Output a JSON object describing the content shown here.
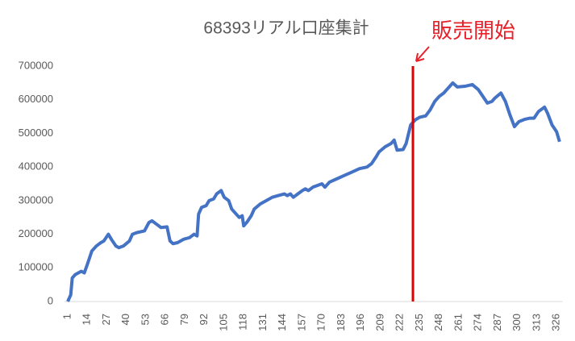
{
  "chart_data": {
    "type": "line",
    "title": "68393リアル口座集計",
    "x": [
      1,
      3,
      4,
      6,
      10,
      12,
      14,
      17,
      20,
      23,
      25,
      28,
      30,
      33,
      35,
      38,
      42,
      44,
      47,
      52,
      55,
      57,
      60,
      63,
      67,
      69,
      71,
      74,
      78,
      82,
      85,
      87,
      88,
      90,
      93,
      95,
      98,
      100,
      103,
      105,
      108,
      110,
      113,
      115,
      117,
      118,
      120,
      123,
      125,
      129,
      133,
      137,
      141,
      145,
      147,
      149,
      151,
      154,
      157,
      159,
      161,
      164,
      170,
      172,
      175,
      180,
      185,
      190,
      195,
      200,
      203,
      206,
      208,
      212,
      216,
      218,
      220,
      224,
      226,
      229,
      232,
      235,
      239,
      242,
      245,
      248,
      251,
      253,
      257,
      260,
      265,
      270,
      274,
      277,
      280,
      283,
      285,
      289,
      292,
      295,
      298,
      301,
      305,
      308,
      311,
      314,
      318,
      320,
      323,
      326,
      328
    ],
    "series": [
      {
        "name": "68393リアル口座集計",
        "color": "#4472c4",
        "values": [
          0,
          20000,
          70000,
          80000,
          90000,
          85000,
          110000,
          150000,
          165000,
          175000,
          180000,
          200000,
          185000,
          165000,
          160000,
          165000,
          180000,
          200000,
          205000,
          210000,
          235000,
          240000,
          230000,
          220000,
          222000,
          180000,
          172000,
          175000,
          185000,
          190000,
          200000,
          195000,
          260000,
          280000,
          285000,
          300000,
          305000,
          320000,
          330000,
          310000,
          300000,
          275000,
          260000,
          250000,
          255000,
          225000,
          235000,
          255000,
          275000,
          290000,
          300000,
          310000,
          315000,
          320000,
          315000,
          320000,
          310000,
          320000,
          330000,
          335000,
          330000,
          340000,
          350000,
          340000,
          355000,
          365000,
          375000,
          385000,
          395000,
          400000,
          410000,
          430000,
          445000,
          460000,
          470000,
          480000,
          450000,
          452000,
          470000,
          525000,
          540000,
          548000,
          552000,
          570000,
          595000,
          610000,
          620000,
          630000,
          650000,
          638000,
          640000,
          645000,
          630000,
          610000,
          590000,
          595000,
          605000,
          620000,
          595000,
          555000,
          520000,
          535000,
          542000,
          545000,
          545000,
          565000,
          578000,
          560000,
          525000,
          505000,
          475000
        ]
      }
    ],
    "xlim": [
      1,
      330
    ],
    "xticks": [
      1,
      14,
      27,
      40,
      53,
      66,
      79,
      92,
      105,
      118,
      131,
      144,
      157,
      170,
      183,
      196,
      209,
      222,
      235,
      248,
      261,
      274,
      287,
      300,
      313,
      326
    ],
    "ylim": [
      0,
      700000
    ],
    "yticks": [
      0,
      100000,
      200000,
      300000,
      400000,
      500000,
      600000,
      700000
    ],
    "annotation": {
      "text": "販売開始",
      "x": 230.5,
      "color": "#e00000"
    }
  }
}
